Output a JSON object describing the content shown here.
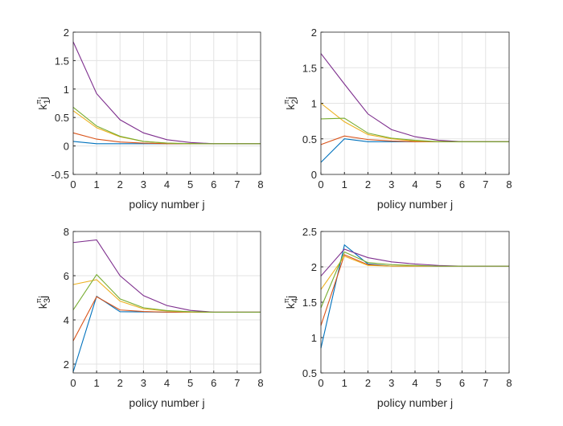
{
  "chart_data": [
    {
      "type": "line",
      "xlabel": "policy number j",
      "ylabel": {
        "base": "k",
        "sub": "1",
        "sup": "π",
        "suffix": "j"
      },
      "x": [
        0,
        1,
        2,
        3,
        4,
        5,
        6,
        7,
        8
      ],
      "xlim": [
        0,
        8
      ],
      "ylim": [
        -0.5,
        2
      ],
      "xticks": [
        0,
        1,
        2,
        3,
        4,
        5,
        6,
        7,
        8
      ],
      "yticks": [
        -0.5,
        0,
        0.5,
        1,
        1.5,
        2
      ],
      "grid": true,
      "series": [
        {
          "color": "#0072BD",
          "values": [
            0.08,
            0.04,
            0.04,
            0.04,
            0.04,
            0.04,
            0.04,
            0.04,
            0.04
          ]
        },
        {
          "color": "#D95319",
          "values": [
            0.23,
            0.12,
            0.07,
            0.05,
            0.04,
            0.04,
            0.04,
            0.04,
            0.04
          ]
        },
        {
          "color": "#EDB120",
          "values": [
            0.62,
            0.32,
            0.16,
            0.08,
            0.05,
            0.04,
            0.04,
            0.04,
            0.04
          ]
        },
        {
          "color": "#7E2F8E",
          "values": [
            1.83,
            0.92,
            0.46,
            0.23,
            0.11,
            0.06,
            0.04,
            0.04,
            0.04
          ]
        },
        {
          "color": "#77AC30",
          "values": [
            0.68,
            0.35,
            0.17,
            0.08,
            0.05,
            0.04,
            0.04,
            0.04,
            0.04
          ]
        }
      ]
    },
    {
      "type": "line",
      "xlabel": "policy number j",
      "ylabel": {
        "base": "k",
        "sub": "2",
        "sup": "π",
        "suffix": "j"
      },
      "x": [
        0,
        1,
        2,
        3,
        4,
        5,
        6,
        7,
        8
      ],
      "xlim": [
        0,
        8
      ],
      "ylim": [
        0,
        2
      ],
      "xticks": [
        0,
        1,
        2,
        3,
        4,
        5,
        6,
        7,
        8
      ],
      "yticks": [
        0,
        0.5,
        1,
        1.5,
        2
      ],
      "grid": true,
      "series": [
        {
          "color": "#0072BD",
          "values": [
            0.17,
            0.5,
            0.46,
            0.46,
            0.46,
            0.46,
            0.46,
            0.46,
            0.46
          ]
        },
        {
          "color": "#D95319",
          "values": [
            0.42,
            0.54,
            0.49,
            0.47,
            0.46,
            0.46,
            0.46,
            0.46,
            0.46
          ]
        },
        {
          "color": "#EDB120",
          "values": [
            1.0,
            0.74,
            0.56,
            0.5,
            0.47,
            0.46,
            0.46,
            0.46,
            0.46
          ]
        },
        {
          "color": "#7E2F8E",
          "values": [
            1.7,
            1.27,
            0.85,
            0.63,
            0.53,
            0.48,
            0.46,
            0.46,
            0.46
          ]
        },
        {
          "color": "#77AC30",
          "values": [
            0.78,
            0.79,
            0.58,
            0.51,
            0.48,
            0.46,
            0.46,
            0.46,
            0.46
          ]
        }
      ]
    },
    {
      "type": "line",
      "xlabel": "policy number j",
      "ylabel": {
        "base": "k",
        "sub": "3",
        "sup": "π",
        "suffix": "j"
      },
      "x": [
        0,
        1,
        2,
        3,
        4,
        5,
        6,
        7,
        8
      ],
      "xlim": [
        0,
        8
      ],
      "ylim": [
        1.6,
        8
      ],
      "xticks": [
        0,
        1,
        2,
        3,
        4,
        5,
        6,
        7,
        8
      ],
      "yticks": [
        2,
        4,
        6,
        8
      ],
      "grid": true,
      "series": [
        {
          "color": "#0072BD",
          "values": [
            1.65,
            5.07,
            4.37,
            4.36,
            4.35,
            4.35,
            4.35,
            4.35,
            4.35
          ]
        },
        {
          "color": "#D95319",
          "values": [
            3.05,
            5.05,
            4.45,
            4.38,
            4.35,
            4.35,
            4.35,
            4.35,
            4.35
          ]
        },
        {
          "color": "#EDB120",
          "values": [
            5.6,
            5.82,
            4.85,
            4.5,
            4.4,
            4.35,
            4.35,
            4.35,
            4.35
          ]
        },
        {
          "color": "#7E2F8E",
          "values": [
            7.5,
            7.62,
            6.0,
            5.1,
            4.65,
            4.43,
            4.35,
            4.35,
            4.35
          ]
        },
        {
          "color": "#77AC30",
          "values": [
            4.45,
            6.05,
            4.95,
            4.55,
            4.42,
            4.37,
            4.35,
            4.35,
            4.35
          ]
        }
      ]
    },
    {
      "type": "line",
      "xlabel": "policy number j",
      "ylabel": {
        "base": "k",
        "sub": "4",
        "sup": "π",
        "suffix": "j"
      },
      "x": [
        0,
        1,
        2,
        3,
        4,
        5,
        6,
        7,
        8
      ],
      "xlim": [
        0,
        8
      ],
      "ylim": [
        0.5,
        2.5
      ],
      "xticks": [
        0,
        1,
        2,
        3,
        4,
        5,
        6,
        7,
        8
      ],
      "yticks": [
        0.5,
        1,
        1.5,
        2,
        2.5
      ],
      "grid": true,
      "series": [
        {
          "color": "#0072BD",
          "values": [
            0.85,
            2.31,
            2.04,
            2.01,
            2.01,
            2.01,
            2.01,
            2.01,
            2.01
          ]
        },
        {
          "color": "#D95319",
          "values": [
            1.17,
            2.17,
            2.03,
            2.01,
            2.01,
            2.01,
            2.01,
            2.01,
            2.01
          ]
        },
        {
          "color": "#EDB120",
          "values": [
            1.68,
            2.15,
            2.02,
            2.01,
            2.01,
            2.01,
            2.01,
            2.01,
            2.01
          ]
        },
        {
          "color": "#7E2F8E",
          "values": [
            1.87,
            2.25,
            2.13,
            2.07,
            2.04,
            2.02,
            2.01,
            2.01,
            2.01
          ]
        },
        {
          "color": "#77AC30",
          "values": [
            1.42,
            2.21,
            2.06,
            2.03,
            2.02,
            2.01,
            2.01,
            2.01,
            2.01
          ]
        }
      ]
    }
  ]
}
